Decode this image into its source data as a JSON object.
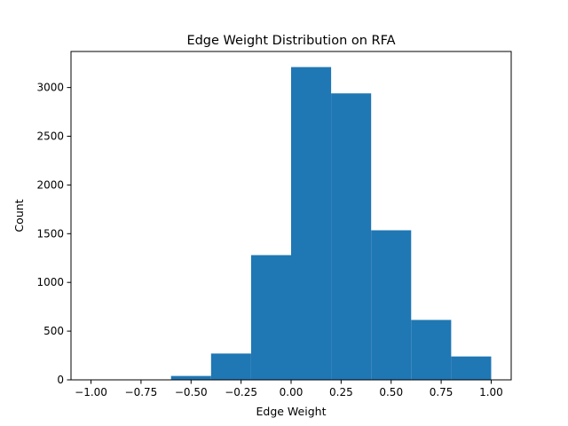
{
  "chart_data": {
    "type": "bar",
    "title": "Edge Weight Distribution on RFA",
    "xlabel": "Edge Weight",
    "ylabel": "Count",
    "bins": [
      {
        "start": -1.0,
        "end": -0.8,
        "value": 0
      },
      {
        "start": -0.8,
        "end": -0.6,
        "value": 0
      },
      {
        "start": -0.6,
        "end": -0.4,
        "value": 40
      },
      {
        "start": -0.4,
        "end": -0.2,
        "value": 270
      },
      {
        "start": -0.2,
        "end": 0.0,
        "value": 1280
      },
      {
        "start": 0.0,
        "end": 0.2,
        "value": 3210
      },
      {
        "start": 0.2,
        "end": 0.4,
        "value": 2940
      },
      {
        "start": 0.4,
        "end": 0.6,
        "value": 1535
      },
      {
        "start": 0.6,
        "end": 0.8,
        "value": 615
      },
      {
        "start": 0.8,
        "end": 1.0,
        "value": 240
      }
    ],
    "xlim": [
      -1.1,
      1.1
    ],
    "ylim": [
      0,
      3370
    ],
    "x_ticks": [
      {
        "value": -1.0,
        "label": "−1.00"
      },
      {
        "value": -0.75,
        "label": "−0.75"
      },
      {
        "value": -0.5,
        "label": "−0.50"
      },
      {
        "value": -0.25,
        "label": "−0.25"
      },
      {
        "value": 0.0,
        "label": "0.00"
      },
      {
        "value": 0.25,
        "label": "0.25"
      },
      {
        "value": 0.5,
        "label": "0.50"
      },
      {
        "value": 0.75,
        "label": "0.75"
      },
      {
        "value": 1.0,
        "label": "1.00"
      }
    ],
    "y_ticks": [
      {
        "value": 0,
        "label": "0"
      },
      {
        "value": 500,
        "label": "500"
      },
      {
        "value": 1000,
        "label": "1000"
      },
      {
        "value": 1500,
        "label": "1500"
      },
      {
        "value": 2000,
        "label": "2000"
      },
      {
        "value": 2500,
        "label": "2500"
      },
      {
        "value": 3000,
        "label": "3000"
      }
    ],
    "bar_color": "#1f77b4",
    "grid": false,
    "legend": "none"
  }
}
